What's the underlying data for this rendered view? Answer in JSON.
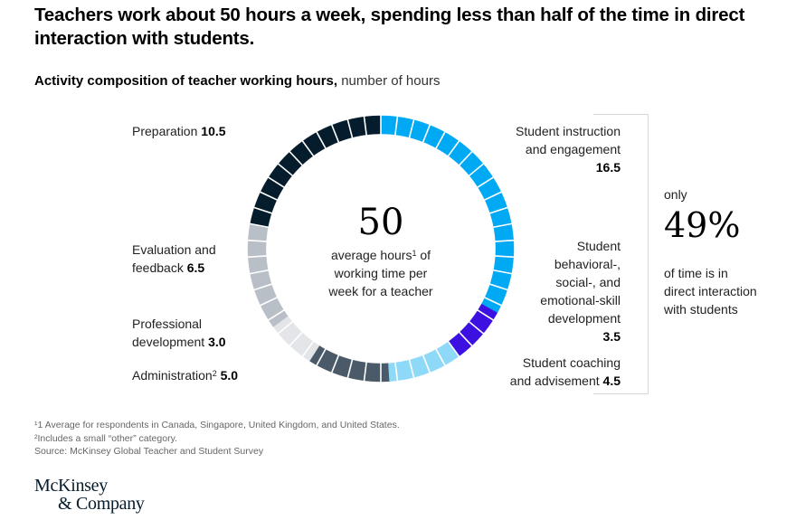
{
  "header": {
    "title": "Teachers work about 50 hours a week, spending less than half of the time in direct interaction with students.",
    "subtitle_bold": "Activity composition of teacher working hours,",
    "subtitle_unit": " number of hours"
  },
  "center": {
    "total": "50",
    "line1_pre": "average hours",
    "line1_sup": "1",
    "line1_post": " of",
    "line2": "working time per",
    "line3": "week for a teacher"
  },
  "labels": {
    "preparation": {
      "name": "Preparation ",
      "value": "10.5"
    },
    "evaluation": {
      "name1": "Evaluation and",
      "name2": "feedback ",
      "value": "6.5"
    },
    "professional": {
      "name1": "Professional",
      "name2": "development ",
      "value": "3.0"
    },
    "administration": {
      "name": "Administration",
      "sup": "2",
      "value": " 5.0"
    },
    "instruction": {
      "name1": "Student instruction",
      "name2": "and engagement",
      "value": "16.5"
    },
    "behavioral": {
      "name1": "Student",
      "name2": "behavioral-,",
      "name3": "social-, and",
      "name4": "emotional-skill",
      "name5": "development",
      "value": "3.5"
    },
    "coaching": {
      "name1": "Student coaching",
      "name2": "and advisement ",
      "value": "4.5"
    }
  },
  "callout": {
    "pre": "only",
    "percent": "49%",
    "line1": "of time is in",
    "line2": "direct interaction",
    "line3": "with students"
  },
  "footnotes": {
    "note1": "¹1 Average for respondents in Canada, Singapore, United Kingdom, and United States.",
    "note2": "²Includes a small “other” category.",
    "source": "Source: McKinsey Global Teacher and Student Survey"
  },
  "logo": {
    "line1": "McKinsey",
    "line2": "& Company"
  },
  "chart_data": {
    "type": "pie",
    "title": "Activity composition of teacher working hours, number of hours",
    "style": "donut, 50 one-hour segments, clockwise from 12 o'clock",
    "total": 50,
    "categories": [
      "Student instruction and engagement",
      "Student behavioral-, social-, and emotional-skill development",
      "Student coaching and advisement",
      "Administration",
      "Professional development",
      "Evaluation and feedback",
      "Preparation"
    ],
    "values": [
      16.5,
      3.5,
      4.5,
      5.0,
      3.0,
      6.5,
      10.5
    ],
    "colors": [
      "#00A9F4",
      "#3C10E0",
      "#8ED8F8",
      "#4A5A68",
      "#E3E5E8",
      "#B9BFC6",
      "#051C2C"
    ],
    "direct_interaction_share_pct": 49,
    "direct_interaction_categories": [
      "Student instruction and engagement",
      "Student behavioral-, social-, and emotional-skill development",
      "Student coaching and advisement"
    ]
  }
}
